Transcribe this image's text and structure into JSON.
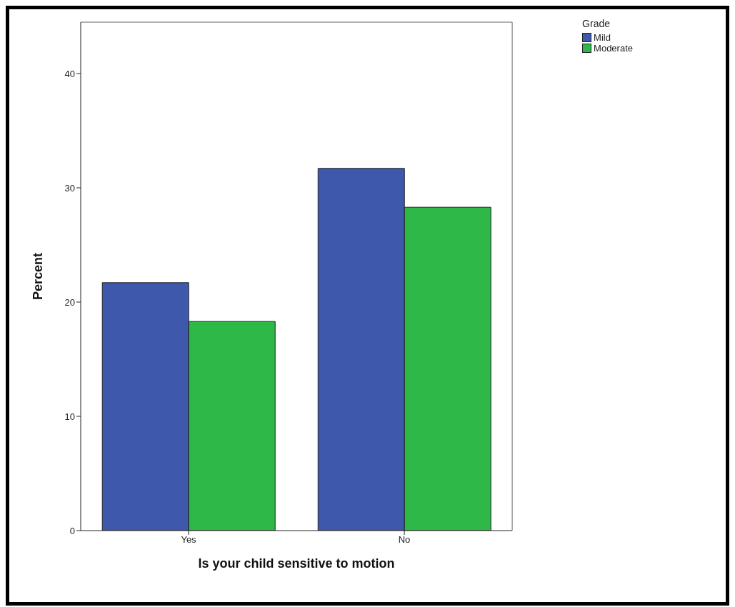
{
  "chart_data": {
    "type": "bar",
    "xlabel": "Is your child sensitive to motion",
    "ylabel": "Percent",
    "legend_title": "Grade",
    "categories": [
      "Yes",
      "No"
    ],
    "series": [
      {
        "name": "Mild",
        "color": "#3e58ac",
        "values": [
          21.7,
          31.7
        ]
      },
      {
        "name": "Moderate",
        "color": "#2eb848",
        "values": [
          18.3,
          28.3
        ]
      }
    ],
    "ylim": [
      0,
      44.5
    ],
    "yticks": [
      0,
      10,
      20,
      30,
      40
    ],
    "grid": false,
    "legend": "top right"
  }
}
